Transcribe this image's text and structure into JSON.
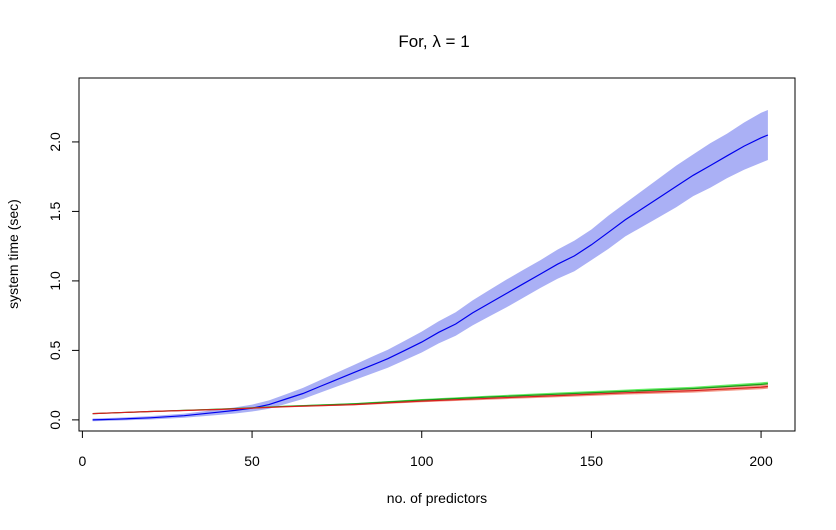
{
  "chart_data": {
    "type": "line",
    "title": "For, λ = 1",
    "xlabel": "no. of predictors",
    "ylabel": "system time (sec)",
    "xlim": [
      -1,
      210
    ],
    "ylim": [
      -0.08,
      2.46
    ],
    "x_ticks": [
      0,
      50,
      100,
      150,
      200
    ],
    "y_ticks": [
      0.0,
      0.5,
      1.0,
      1.5,
      2.0
    ],
    "x_tick_labels": [
      "0",
      "50",
      "100",
      "150",
      "200"
    ],
    "y_tick_labels": [
      "0.0",
      "0.5",
      "1.0",
      "1.5",
      "2.0"
    ],
    "grid": false,
    "legend": "none",
    "colors": {
      "blue_line": "#0000ee",
      "blue_band": "#aab0f5",
      "red_line": "#d62020",
      "red_band": "#f39a8a",
      "green_line": "#1a9a1a",
      "green_band": "#66ee66",
      "axis": "#000000"
    },
    "series": [
      {
        "color": "blue",
        "x": [
          3,
          10,
          20,
          30,
          40,
          45,
          50,
          55,
          60,
          65,
          70,
          75,
          80,
          85,
          90,
          95,
          100,
          105,
          110,
          115,
          120,
          125,
          130,
          135,
          140,
          145,
          150,
          155,
          160,
          165,
          170,
          175,
          180,
          185,
          190,
          195,
          200,
          202
        ],
        "y": [
          0.0,
          0.005,
          0.015,
          0.03,
          0.055,
          0.068,
          0.085,
          0.11,
          0.15,
          0.19,
          0.24,
          0.29,
          0.34,
          0.39,
          0.44,
          0.5,
          0.56,
          0.63,
          0.69,
          0.77,
          0.84,
          0.91,
          0.98,
          1.05,
          1.12,
          1.18,
          1.26,
          1.35,
          1.44,
          1.52,
          1.6,
          1.68,
          1.76,
          1.83,
          1.9,
          1.97,
          2.03,
          2.05
        ],
        "band": [
          0.01,
          0.01,
          0.012,
          0.015,
          0.02,
          0.022,
          0.025,
          0.03,
          0.035,
          0.04,
          0.045,
          0.05,
          0.055,
          0.06,
          0.065,
          0.07,
          0.075,
          0.08,
          0.085,
          0.09,
          0.095,
          0.1,
          0.1,
          0.1,
          0.105,
          0.11,
          0.11,
          0.12,
          0.12,
          0.13,
          0.14,
          0.15,
          0.15,
          0.16,
          0.16,
          0.17,
          0.18,
          0.18
        ]
      },
      {
        "color": "red",
        "x": [
          3,
          20,
          40,
          50,
          60,
          80,
          100,
          120,
          140,
          160,
          180,
          200,
          202
        ],
        "y": [
          0.045,
          0.06,
          0.075,
          0.085,
          0.095,
          0.11,
          0.135,
          0.155,
          0.175,
          0.195,
          0.21,
          0.235,
          0.24
        ],
        "band": [
          0.003,
          0.003,
          0.004,
          0.004,
          0.005,
          0.006,
          0.008,
          0.01,
          0.012,
          0.013,
          0.014,
          0.015,
          0.015
        ]
      },
      {
        "color": "green",
        "x": [
          3,
          20,
          40,
          50,
          60,
          80,
          100,
          120,
          140,
          160,
          180,
          200,
          202
        ],
        "y": [
          0.045,
          0.06,
          0.077,
          0.087,
          0.098,
          0.115,
          0.142,
          0.165,
          0.185,
          0.205,
          0.225,
          0.255,
          0.26
        ],
        "band": [
          0.003,
          0.003,
          0.004,
          0.004,
          0.005,
          0.006,
          0.008,
          0.01,
          0.012,
          0.013,
          0.014,
          0.015,
          0.015
        ]
      }
    ]
  }
}
